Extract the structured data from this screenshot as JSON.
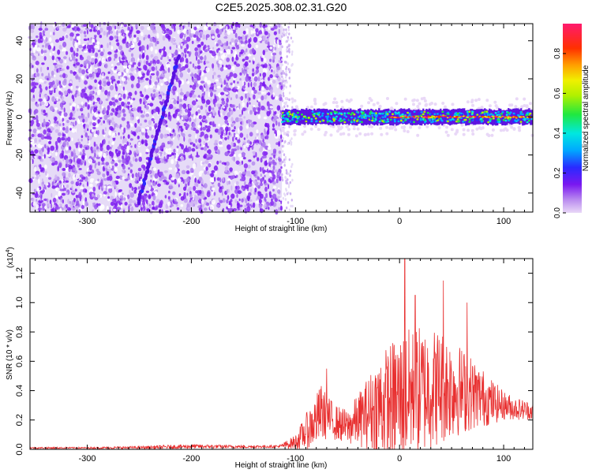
{
  "figure_title": "C2E5.2025.308.02.31.G20",
  "chart_data": [
    {
      "type": "heatmap",
      "panel": "spectrogram",
      "xlabel": "Height of straight line (km)",
      "ylabel": "Frequency (Hz)",
      "xlim": [
        -355,
        128
      ],
      "ylim": [
        -50,
        49
      ],
      "xticks": [
        -300,
        -200,
        -100,
        0,
        100
      ],
      "yticks": [
        -40,
        -20,
        0,
        20,
        40
      ],
      "colorbar": {
        "label": "Normalized spectral amplitude",
        "range": [
          0,
          0.95
        ],
        "ticks": [
          "0.0",
          "0.2",
          "0.4",
          "0.6",
          "0.8"
        ],
        "tick_values": [
          0.0,
          0.2,
          0.4,
          0.6,
          0.8
        ]
      },
      "noise_region_x": [
        -355,
        -113
      ],
      "signal_band": {
        "x_range": [
          -113,
          128
        ],
        "center_freq": 0,
        "half_width": 4,
        "peak_amplitude": 0.9
      },
      "streak": {
        "x": [
          -251,
          -212
        ],
        "freq": [
          -45,
          32
        ]
      }
    },
    {
      "type": "line",
      "panel": "snr",
      "xlabel": "Height of straight line (km)",
      "ylabel": "SNR (10 * v/v)",
      "scale_label": "(x10",
      "scale_exp": "4",
      "scale_close": ")",
      "xlim": [
        -355,
        128
      ],
      "ylim": [
        0,
        1.3
      ],
      "xticks": [
        -300,
        -200,
        -100,
        0,
        100
      ],
      "yticks": [
        "0.0",
        "0.2",
        "0.4",
        "0.6",
        "0.8",
        "1.0",
        "1.2"
      ],
      "ytick_values": [
        0.0,
        0.2,
        0.4,
        0.6,
        0.8,
        1.0,
        1.2
      ],
      "series": [
        {
          "name": "SNR",
          "color": "#e83030",
          "x": [
            -355,
            -300,
            -250,
            -200,
            -150,
            -115,
            -100,
            -90,
            -80,
            -75,
            -70,
            -60,
            -50,
            -40,
            -30,
            -20,
            -10,
            0,
            10,
            20,
            30,
            40,
            50,
            60,
            70,
            80,
            90,
            100,
            110,
            128
          ],
          "mean": [
            0.01,
            0.01,
            0.012,
            0.02,
            0.018,
            0.02,
            0.05,
            0.12,
            0.2,
            0.25,
            0.22,
            0.18,
            0.15,
            0.2,
            0.25,
            0.3,
            0.32,
            0.35,
            0.38,
            0.4,
            0.42,
            0.43,
            0.42,
            0.4,
            0.38,
            0.35,
            0.32,
            0.3,
            0.28,
            0.26
          ],
          "spread": [
            0.005,
            0.005,
            0.01,
            0.015,
            0.01,
            0.01,
            0.05,
            0.12,
            0.18,
            0.2,
            0.15,
            0.12,
            0.12,
            0.18,
            0.25,
            0.35,
            0.4,
            0.45,
            0.45,
            0.45,
            0.42,
            0.4,
            0.35,
            0.3,
            0.25,
            0.2,
            0.15,
            0.1,
            0.08,
            0.06
          ],
          "peaks": [
            {
              "x": -70,
              "y": 0.55
            },
            {
              "x": 5,
              "y": 1.3
            },
            {
              "x": 15,
              "y": 1.05
            },
            {
              "x": 42,
              "y": 1.15
            },
            {
              "x": 65,
              "y": 1.0
            }
          ]
        }
      ]
    }
  ]
}
